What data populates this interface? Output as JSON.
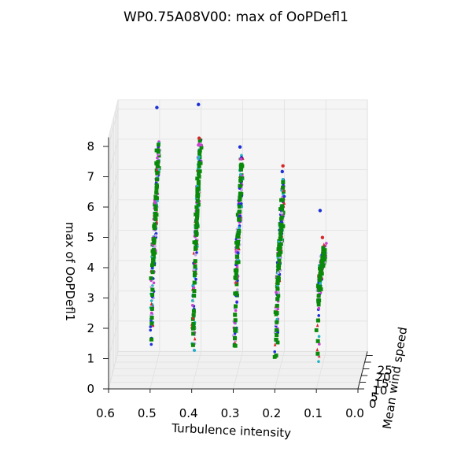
{
  "chart_data": {
    "type": "scatter",
    "title": "WP0.75A08V00: max of OoPDefl1",
    "xlabel": "Turbulence intensity",
    "ylabel": "Mean wind speed",
    "zlabel": "max of OoPDefl1",
    "x_ticks": [
      "0.6",
      "0.5",
      "0.4",
      "0.3",
      "0.2",
      "0.1",
      "0.0"
    ],
    "y_ticks": [
      "0",
      "5",
      "10",
      "15",
      "20",
      "25"
    ],
    "z_ticks": [
      "0",
      "1",
      "2",
      "3",
      "4",
      "5",
      "6",
      "7",
      "8"
    ],
    "xlim": [
      0.0,
      0.6
    ],
    "ylim": [
      0,
      28
    ],
    "zlim": [
      0,
      8.3
    ],
    "grid": true,
    "turbulence_levels": [
      0.1,
      0.2,
      0.3,
      0.4,
      0.5
    ],
    "series_colors": [
      "#0a8a0a",
      "#1c2fd6",
      "#d62728",
      "#22b4c4",
      "#c93fcf",
      "#c3a9e6"
    ],
    "ti_groups": [
      {
        "ti": 0.1,
        "curve": [
          [
            4,
            0.9
          ],
          [
            6,
            2.7
          ],
          [
            8,
            3.0
          ],
          [
            10,
            3.1
          ],
          [
            12,
            3.3
          ],
          [
            14,
            3.4
          ],
          [
            16,
            3.45
          ],
          [
            18,
            3.5
          ],
          [
            20,
            3.5
          ],
          [
            22,
            3.5
          ],
          [
            24,
            3.5
          ]
        ],
        "outliers": [
          {
            "ws": 11,
            "z": 5.4
          },
          {
            "ws": 18,
            "z": 4.2
          }
        ]
      },
      {
        "ti": 0.2,
        "curve": [
          [
            4,
            1.0
          ],
          [
            6,
            2.1
          ],
          [
            8,
            2.8
          ],
          [
            10,
            3.2
          ],
          [
            12,
            3.5
          ],
          [
            14,
            3.9
          ],
          [
            16,
            4.2
          ],
          [
            18,
            4.4
          ],
          [
            20,
            4.6
          ],
          [
            22,
            5.0
          ],
          [
            24,
            5.5
          ],
          [
            25,
            6.0
          ]
        ],
        "outliers": [
          {
            "ws": 22,
            "z": 6.2
          },
          {
            "ws": 24,
            "z": 6.3
          }
        ]
      },
      {
        "ti": 0.3,
        "curve": [
          [
            4,
            1.3
          ],
          [
            6,
            1.8
          ],
          [
            8,
            3.1
          ],
          [
            10,
            3.6
          ],
          [
            12,
            4.0
          ],
          [
            14,
            4.3
          ],
          [
            16,
            4.6
          ],
          [
            18,
            5.0
          ],
          [
            20,
            5.3
          ],
          [
            22,
            5.8
          ],
          [
            24,
            6.3
          ],
          [
            25,
            6.6
          ]
        ],
        "outliers": [
          {
            "ws": 20,
            "z": 7.1
          }
        ]
      },
      {
        "ti": 0.4,
        "curve": [
          [
            4,
            1.3
          ],
          [
            6,
            2.2
          ],
          [
            8,
            3.2
          ],
          [
            10,
            3.7
          ],
          [
            12,
            4.2
          ],
          [
            14,
            4.6
          ],
          [
            16,
            5.0
          ],
          [
            18,
            5.4
          ],
          [
            20,
            5.9
          ],
          [
            22,
            6.4
          ],
          [
            24,
            6.9
          ],
          [
            25,
            7.1
          ]
        ],
        "outliers": [
          {
            "ws": 20,
            "z": 8.5
          },
          {
            "ws": 22,
            "z": 7.3
          }
        ]
      },
      {
        "ti": 0.5,
        "curve": [
          [
            4,
            1.5
          ],
          [
            6,
            2.6
          ],
          [
            8,
            3.6
          ],
          [
            10,
            4.0
          ],
          [
            12,
            4.4
          ],
          [
            14,
            4.8
          ],
          [
            16,
            5.2
          ],
          [
            18,
            5.6
          ],
          [
            20,
            6.0
          ],
          [
            22,
            6.3
          ],
          [
            24,
            6.8
          ],
          [
            25,
            7.0
          ]
        ],
        "outliers": [
          {
            "ws": 20,
            "z": 8.4
          }
        ]
      }
    ]
  }
}
